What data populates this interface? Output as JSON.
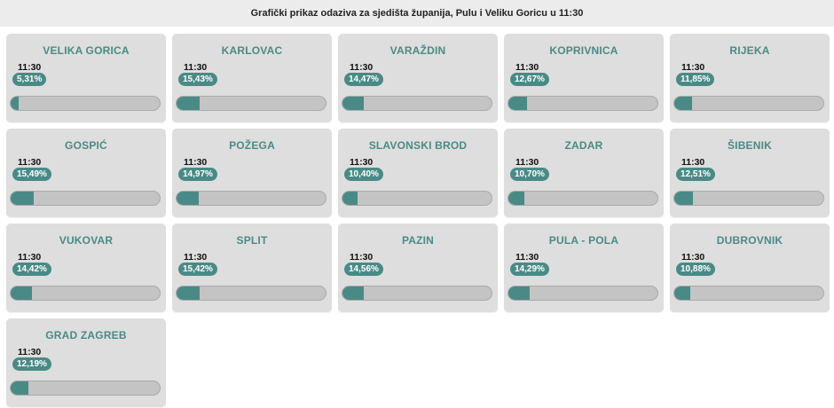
{
  "header": {
    "title": "Grafički prikaz odaziva za sjedišta županija, Pulu i Veliku Goricu u 11:30"
  },
  "colors": {
    "accent": "#4a8a86",
    "card": "#dedede",
    "track": "#c4c4c4"
  },
  "chart_data": {
    "type": "bar",
    "title": "Grafički prikaz odaziva za sjedišta županija, Pulu i Veliku Goricu u 11:30",
    "time": "11:30",
    "xlim": [
      0,
      100
    ],
    "items": [
      {
        "name": "VELIKA GORICA",
        "time": "11:30",
        "label": "5,31%",
        "value": 5.31
      },
      {
        "name": "KARLOVAC",
        "time": "11:30",
        "label": "15,43%",
        "value": 15.43
      },
      {
        "name": "VARAŽDIN",
        "time": "11:30",
        "label": "14,47%",
        "value": 14.47
      },
      {
        "name": "KOPRIVNICA",
        "time": "11:30",
        "label": "12,67%",
        "value": 12.67
      },
      {
        "name": "RIJEKA",
        "time": "11:30",
        "label": "11,85%",
        "value": 11.85
      },
      {
        "name": "GOSPIĆ",
        "time": "11:30",
        "label": "15,49%",
        "value": 15.49
      },
      {
        "name": "POŽEGA",
        "time": "11:30",
        "label": "14,97%",
        "value": 14.97
      },
      {
        "name": "SLAVONSKI BROD",
        "time": "11:30",
        "label": "10,40%",
        "value": 10.4
      },
      {
        "name": "ZADAR",
        "time": "11:30",
        "label": "10,70%",
        "value": 10.7
      },
      {
        "name": "ŠIBENIK",
        "time": "11:30",
        "label": "12,51%",
        "value": 12.51
      },
      {
        "name": "VUKOVAR",
        "time": "11:30",
        "label": "14,42%",
        "value": 14.42
      },
      {
        "name": "SPLIT",
        "time": "11:30",
        "label": "15,42%",
        "value": 15.42
      },
      {
        "name": "PAZIN",
        "time": "11:30",
        "label": "14,56%",
        "value": 14.56
      },
      {
        "name": "PULA - POLA",
        "time": "11:30",
        "label": "14,29%",
        "value": 14.29
      },
      {
        "name": "DUBROVNIK",
        "time": "11:30",
        "label": "10,88%",
        "value": 10.88
      },
      {
        "name": "GRAD ZAGREB",
        "time": "11:30",
        "label": "12,19%",
        "value": 12.19
      }
    ]
  }
}
